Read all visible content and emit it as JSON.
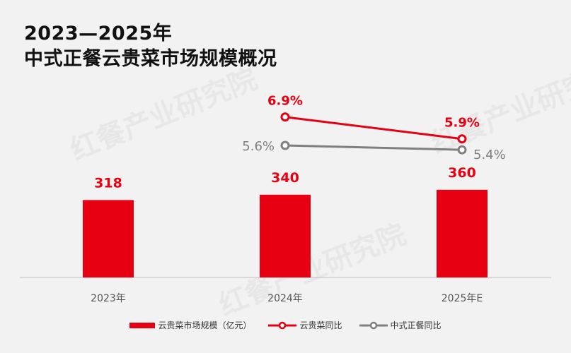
{
  "title": {
    "line1": "2023—2025年",
    "line2": "中式正餐云贵菜市场规模概况"
  },
  "watermark": "红餐产业研究院",
  "colors": {
    "bar": "#e60012",
    "line_yunnan": "#e60012",
    "line_chinese": "#7f7f7f",
    "axis": "#bfbfbf",
    "background": "#f2f2f2"
  },
  "legend": {
    "bar_label": "云贵菜市场规模（亿元）",
    "line1_label": "云贵菜同比",
    "line2_label": "中式正餐同比"
  },
  "chart_data": {
    "type": "bar",
    "categories": [
      "2023年",
      "2024年",
      "2025年E"
    ],
    "series": [
      {
        "name": "云贵菜市场规模（亿元）",
        "type": "bar",
        "values": [
          318,
          340,
          360
        ],
        "labels": [
          "318",
          "340",
          "360"
        ]
      },
      {
        "name": "云贵菜同比",
        "type": "line",
        "values": [
          null,
          6.9,
          5.9
        ],
        "labels": [
          null,
          "6.9%",
          "5.9%"
        ]
      },
      {
        "name": "中式正餐同比",
        "type": "line",
        "values": [
          null,
          5.6,
          5.4
        ],
        "labels": [
          null,
          "5.6%",
          "5.4%"
        ]
      }
    ],
    "legend_position": "bottom",
    "grid": false
  }
}
